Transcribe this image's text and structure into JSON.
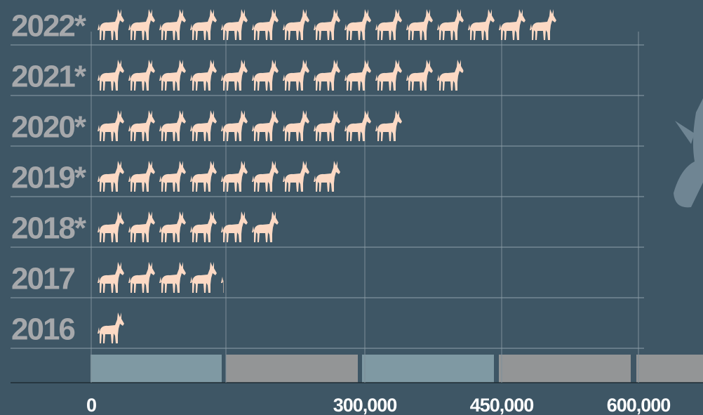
{
  "chart_data": {
    "type": "pictograph",
    "categories": [
      "2022*",
      "2021*",
      "2020*",
      "2019*",
      "2018*",
      "2017",
      "2016"
    ],
    "values": [
      511000,
      408000,
      344000,
      277000,
      210000,
      145000,
      40000
    ],
    "color": "#fcd9c4",
    "xlim": [
      0,
      600000
    ],
    "xticks": [
      0,
      {
        "value": 300000,
        "label": "300,000"
      },
      {
        "value": 450000,
        "label": "450,000"
      },
      {
        "value": 600000,
        "label": "600,000"
      }
    ],
    "grid": true
  }
}
